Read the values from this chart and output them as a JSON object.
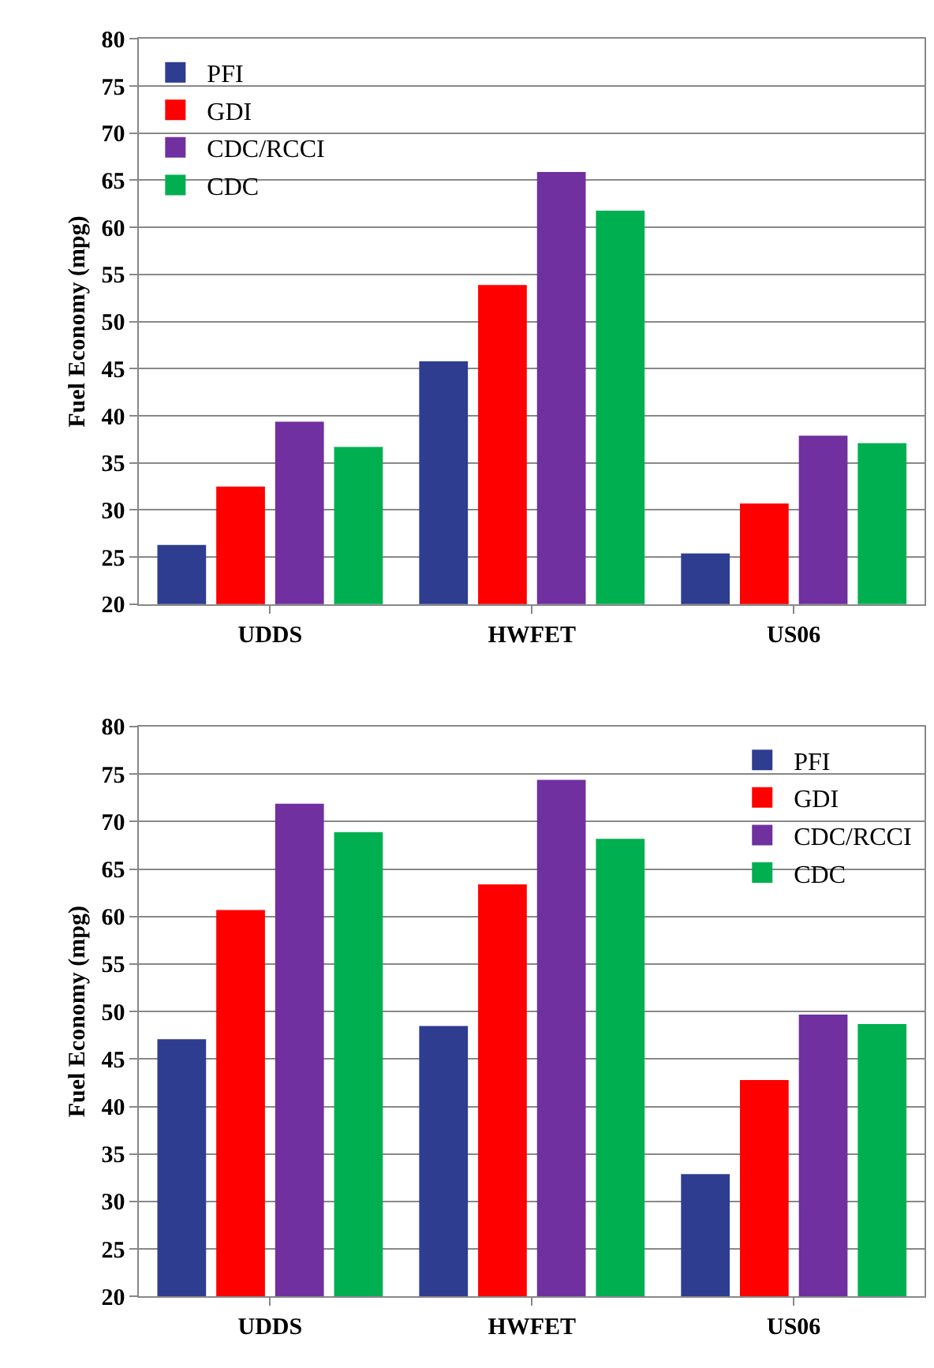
{
  "chart_data": [
    {
      "type": "bar",
      "categories": [
        "UDDS",
        "HWFET",
        "US06"
      ],
      "ylabel": "Fuel Economy (mpg)",
      "ylim": [
        20,
        80
      ],
      "yticks": [
        20,
        25,
        30,
        35,
        40,
        45,
        50,
        55,
        60,
        65,
        70,
        75,
        80
      ],
      "grid": "y",
      "legend": "top left",
      "series": [
        {
          "name": "PFI",
          "color": "#2e3d8f",
          "values": [
            26.2,
            45.7,
            25.3
          ]
        },
        {
          "name": "GDI",
          "color": "#ff0000",
          "values": [
            32.4,
            53.8,
            30.6
          ]
        },
        {
          "name": "CDC/RCCI",
          "color": "#7030a0",
          "values": [
            39.3,
            65.8,
            37.8
          ]
        },
        {
          "name": "CDC",
          "color": "#00b050",
          "values": [
            36.6,
            61.7,
            37.0
          ]
        }
      ]
    },
    {
      "type": "bar",
      "categories": [
        "UDDS",
        "HWFET",
        "US06"
      ],
      "ylabel": "Fuel Economy (mpg)",
      "ylim": [
        20,
        80
      ],
      "yticks": [
        20,
        25,
        30,
        35,
        40,
        45,
        50,
        55,
        60,
        65,
        70,
        75,
        80
      ],
      "grid": "y",
      "legend": "top right",
      "series": [
        {
          "name": "PFI",
          "color": "#2e3d8f",
          "values": [
            47.0,
            48.4,
            32.8
          ]
        },
        {
          "name": "GDI",
          "color": "#ff0000",
          "values": [
            60.6,
            63.3,
            42.7
          ]
        },
        {
          "name": "CDC/RCCI",
          "color": "#7030a0",
          "values": [
            71.8,
            74.3,
            49.6
          ]
        },
        {
          "name": "CDC",
          "color": "#00b050",
          "values": [
            68.8,
            68.1,
            48.6
          ]
        }
      ]
    }
  ]
}
